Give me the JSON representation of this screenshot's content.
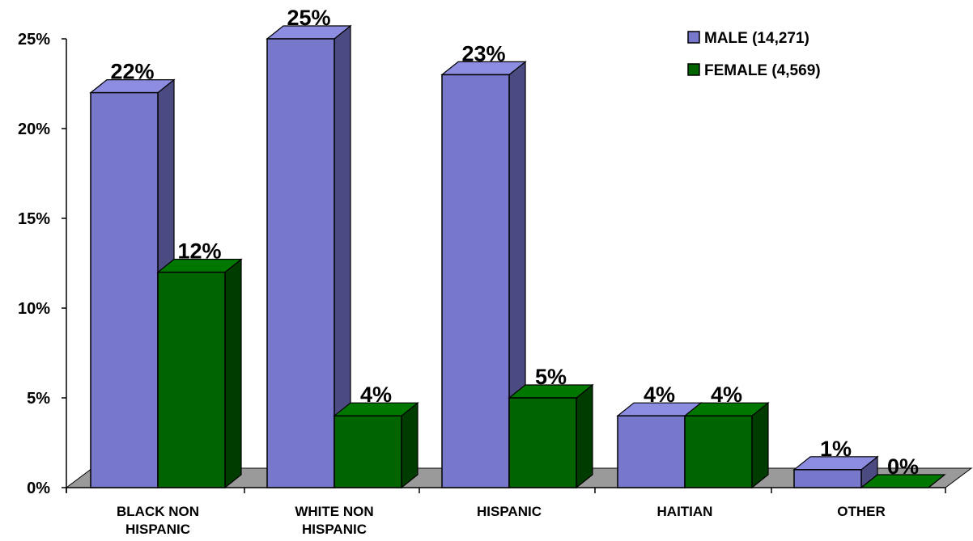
{
  "chart_data": {
    "type": "bar",
    "title": "",
    "xlabel": "",
    "ylabel": "",
    "ylim": [
      0,
      25
    ],
    "y_ticks": [
      "0%",
      "5%",
      "10%",
      "15%",
      "20%",
      "25%"
    ],
    "categories": [
      [
        "BLACK NON",
        "HISPANIC"
      ],
      [
        "WHITE NON",
        "HISPANIC"
      ],
      [
        "HISPANIC"
      ],
      [
        "HAITIAN"
      ],
      [
        "OTHER"
      ]
    ],
    "series": [
      {
        "name": "MALE (14,271)",
        "values": [
          22,
          25,
          23,
          4,
          1
        ],
        "labels": [
          "22%",
          "25%",
          "23%",
          "4%",
          "1%"
        ],
        "color": "#7777cc",
        "side_color": "#4b4b82",
        "top_color": "#8c8ce0"
      },
      {
        "name": "FEMALE (4,569)",
        "values": [
          12,
          4,
          5,
          4,
          0
        ],
        "labels": [
          "12%",
          "4%",
          "5%",
          "4%",
          "0%"
        ],
        "color": "#006400",
        "side_color": "#003c00",
        "top_color": "#007800"
      }
    ],
    "floor_color": "#9a9a9a",
    "legend_position": "top-right",
    "grid": false,
    "style": "3d-bar"
  }
}
